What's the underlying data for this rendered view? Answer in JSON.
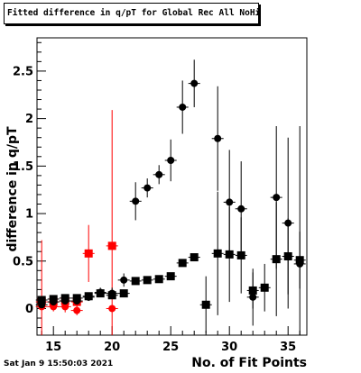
{
  "chart_data": {
    "type": "scatter",
    "title": "Fitted difference in q/pT for Global Rec All NoHits",
    "xlabel": "No. of Fit Points",
    "ylabel": "difference in q/pT",
    "xlim": [
      13.6,
      36.6
    ],
    "ylim": [
      -0.28,
      2.85
    ],
    "x_ticks": [
      15,
      20,
      25,
      30,
      35
    ],
    "y_ticks": [
      0,
      0.5,
      1,
      1.5,
      2,
      2.5
    ],
    "y_tick_labels": [
      "0",
      "0.5",
      "1",
      "1.5",
      "2",
      "2.5"
    ],
    "grid": false,
    "legend": "none",
    "series": [
      {
        "color": "#ff0000",
        "marker": "circle",
        "points": [
          {
            "x": 14,
            "y": 0.02,
            "err": 0.7
          },
          {
            "x": 15,
            "y": 0.02,
            "err": 0.05
          },
          {
            "x": 16,
            "y": 0.02,
            "err": 0.06
          },
          {
            "x": 17,
            "y": -0.02,
            "err": 0.05
          },
          {
            "x": 18,
            "y": null,
            "err": null
          },
          {
            "x": 19,
            "y": null,
            "err": null
          },
          {
            "x": 20,
            "y": 0.0,
            "err": null
          }
        ]
      },
      {
        "color": "#ff0000",
        "marker": "square",
        "points": [
          {
            "x": 14,
            "y": 0.07,
            "err": 0.05
          },
          {
            "x": 15,
            "y": 0.07,
            "err": 0.05
          },
          {
            "x": 16,
            "y": 0.08,
            "err": 0.05
          },
          {
            "x": 17,
            "y": 0.07,
            "err": 0.05
          },
          {
            "x": 18,
            "y": 0.58,
            "err": 0.3
          },
          {
            "x": 20,
            "y": 0.66,
            "err": 1.43
          }
        ]
      },
      {
        "color": "#000000",
        "marker": "circle",
        "points": [
          {
            "x": 14,
            "y": 0.04,
            "err": 0.05
          },
          {
            "x": 15,
            "y": 0.07,
            "err": 0.04
          },
          {
            "x": 16,
            "y": 0.08,
            "err": 0.04
          },
          {
            "x": 17,
            "y": 0.08,
            "err": 0.04
          },
          {
            "x": 18,
            "y": 0.12,
            "err": 0.04
          },
          {
            "x": 19,
            "y": 0.17,
            "err": 0.05
          },
          {
            "x": 20,
            "y": 0.16,
            "err": 0.06
          },
          {
            "x": 21,
            "y": 0.3,
            "err": 0.07
          },
          {
            "x": 22,
            "y": 1.13,
            "err": 0.2
          },
          {
            "x": 23,
            "y": 1.27,
            "err": 0.1
          },
          {
            "x": 24,
            "y": 1.41,
            "err": 0.1
          },
          {
            "x": 25,
            "y": 1.56,
            "err": 0.22
          },
          {
            "x": 26,
            "y": 2.12,
            "err": 0.28
          },
          {
            "x": 27,
            "y": 2.37,
            "err": 0.25
          },
          {
            "x": 28,
            "y": null,
            "err": null
          },
          {
            "x": 29,
            "y": 1.79,
            "err": 0.55
          },
          {
            "x": 30,
            "y": 1.12,
            "err": 0.55
          },
          {
            "x": 31,
            "y": 1.05,
            "err": 0.5
          },
          {
            "x": 32,
            "y": 0.12,
            "err": 0.3
          },
          {
            "x": 33,
            "y": null,
            "err": null
          },
          {
            "x": 34,
            "y": 1.17,
            "err": 0.75
          },
          {
            "x": 35,
            "y": 0.9,
            "err": 0.9
          },
          {
            "x": 36,
            "y": 0.47,
            "err": 1.45
          }
        ]
      },
      {
        "color": "#000000",
        "marker": "square",
        "points": [
          {
            "x": 14,
            "y": 0.09,
            "err": 0.03
          },
          {
            "x": 15,
            "y": 0.1,
            "err": 0.03
          },
          {
            "x": 16,
            "y": 0.11,
            "err": 0.03
          },
          {
            "x": 17,
            "y": 0.11,
            "err": 0.03
          },
          {
            "x": 18,
            "y": 0.13,
            "err": 0.03
          },
          {
            "x": 19,
            "y": 0.16,
            "err": 0.03
          },
          {
            "x": 20,
            "y": 0.14,
            "err": 0.03
          },
          {
            "x": 21,
            "y": 0.16,
            "err": 0.03
          },
          {
            "x": 22,
            "y": 0.29,
            "err": 0.03
          },
          {
            "x": 23,
            "y": 0.3,
            "err": 0.03
          },
          {
            "x": 24,
            "y": 0.31,
            "err": 0.03
          },
          {
            "x": 25,
            "y": 0.34,
            "err": 0.03
          },
          {
            "x": 26,
            "y": 0.48,
            "err": 0.03
          },
          {
            "x": 27,
            "y": 0.54,
            "err": 0.03
          },
          {
            "x": 28,
            "y": 0.04,
            "err": 0.3
          },
          {
            "x": 29,
            "y": 0.58,
            "err": 0.65
          },
          {
            "x": 30,
            "y": 0.57,
            "err": 0.5
          },
          {
            "x": 31,
            "y": 0.56,
            "err": 0.4
          },
          {
            "x": 32,
            "y": 0.19,
            "err": 0.19
          },
          {
            "x": 33,
            "y": 0.22,
            "err": 0.25
          },
          {
            "x": 34,
            "y": 0.52,
            "err": 0.6
          },
          {
            "x": 35,
            "y": 0.55,
            "err": 0.4
          },
          {
            "x": 36,
            "y": 0.51,
            "err": 0.3
          }
        ]
      }
    ]
  },
  "timestamp": "Sat Jan  9 15:50:03 2021"
}
